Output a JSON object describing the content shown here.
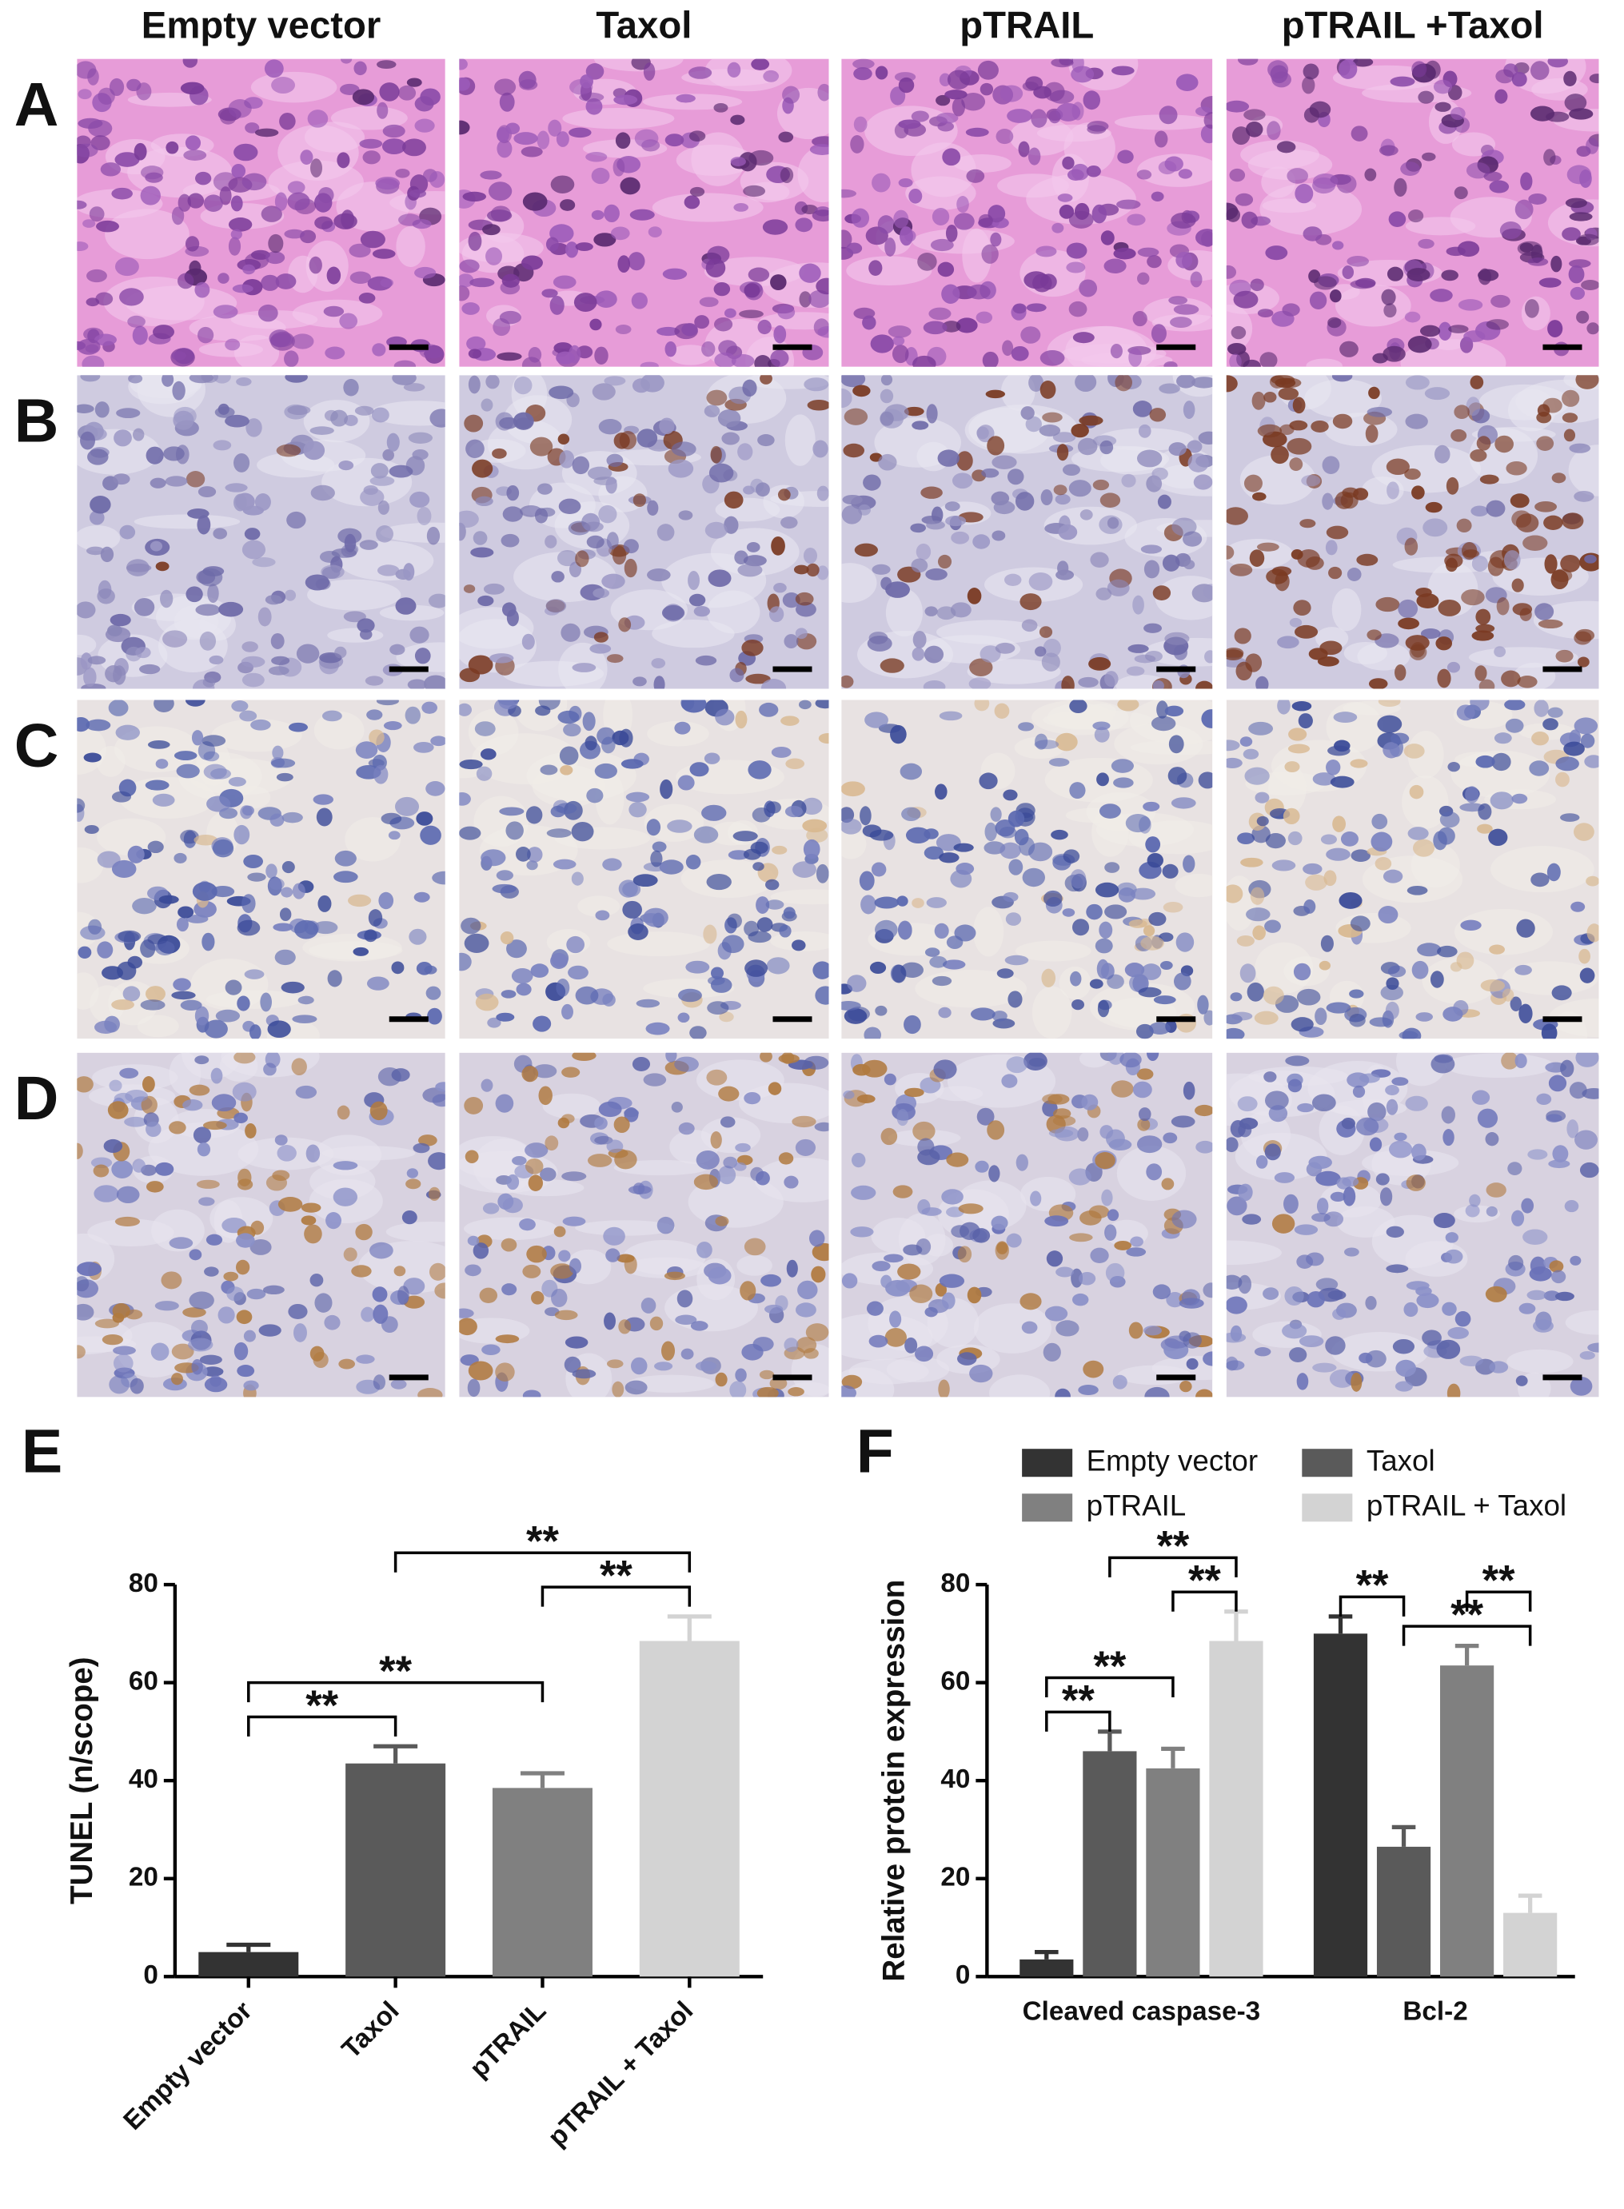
{
  "figure": {
    "columns": [
      "Empty vector",
      "Taxol",
      "pTRAIL",
      "pTRAIL +Taxol"
    ],
    "rows": [
      "A",
      "B",
      "C",
      "D"
    ]
  },
  "chart_data": [
    {
      "type": "bar",
      "panel_label": "E",
      "ylabel": "TUNEL (n/scope)",
      "categories": [
        "Empty vector",
        "Taxol",
        "pTRAIL",
        "pTRAIL + Taxol"
      ],
      "values": [
        5,
        43.5,
        38.5,
        68.5
      ],
      "errors": [
        1.5,
        3.5,
        3,
        5
      ],
      "colors": [
        "#333333",
        "#5a5a5a",
        "#808080",
        "#d3d3d3"
      ],
      "ylim": [
        0,
        80
      ],
      "yticks": [
        0,
        20,
        40,
        60,
        80
      ],
      "annotations": [
        {
          "from": 0,
          "to": 1,
          "label": "**"
        },
        {
          "from": 0,
          "to": 2,
          "label": "**"
        },
        {
          "from": 2,
          "to": 3,
          "label": "**"
        },
        {
          "from": 1,
          "to": 3,
          "label": "**"
        }
      ]
    },
    {
      "type": "grouped_bar",
      "panel_label": "F",
      "ylabel": "Relative protein expression",
      "categories": [
        "Cleaved  caspase-3",
        "Bcl-2"
      ],
      "series": [
        {
          "name": "Empty vector",
          "color": "#333333",
          "values": [
            3.5,
            70
          ],
          "errors": [
            1.5,
            3.5
          ]
        },
        {
          "name": "Taxol",
          "color": "#5a5a5a",
          "values": [
            46,
            26.5
          ],
          "errors": [
            4,
            4
          ]
        },
        {
          "name": "pTRAIL",
          "color": "#808080",
          "values": [
            42.5,
            63.5
          ],
          "errors": [
            4,
            4
          ]
        },
        {
          "name": "pTRAIL + Taxol",
          "color": "#d3d3d3",
          "values": [
            68.5,
            13
          ],
          "errors": [
            6,
            3.5
          ]
        }
      ],
      "legend": "top",
      "ylim": [
        0,
        80
      ],
      "yticks": [
        0,
        20,
        40,
        60,
        80
      ],
      "annotations": [
        {
          "category": 0,
          "from": 0,
          "to": 1,
          "label": "**"
        },
        {
          "category": 0,
          "from": 0,
          "to": 2,
          "label": "**"
        },
        {
          "category": 0,
          "from": 2,
          "to": 3,
          "label": "**"
        },
        {
          "category": 0,
          "from": 1,
          "to": 3,
          "label": "**"
        },
        {
          "category": 1,
          "from": 0,
          "to": 1,
          "label": "**"
        },
        {
          "category": 1,
          "from": 1,
          "to": 3,
          "label": "**"
        },
        {
          "category": 1,
          "from": 2,
          "to": 3,
          "label": "**"
        }
      ]
    }
  ]
}
